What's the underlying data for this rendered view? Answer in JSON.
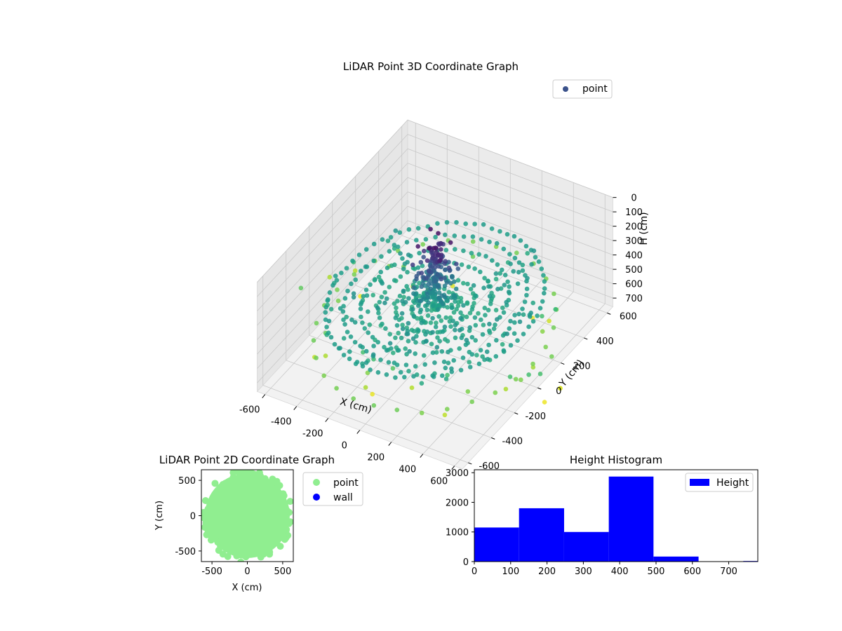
{
  "chart_data": [
    {
      "type": "scatter",
      "projection": "3d",
      "title": "LiDAR Point 3D Coordinate Graph",
      "xlabel": "X (cm)",
      "ylabel": "Y (cm)",
      "zlabel": "H (cm)",
      "xlim": [
        -650,
        650
      ],
      "ylim": [
        -650,
        650
      ],
      "zlim": [
        760,
        0
      ],
      "z_inverted": true,
      "xticks": [
        -600,
        -400,
        -200,
        0,
        200,
        400,
        600
      ],
      "yticks": [
        -600,
        -400,
        -200,
        0,
        200,
        400,
        600
      ],
      "zticks": [
        0,
        100,
        200,
        300,
        400,
        500,
        600,
        700
      ],
      "colormap": "viridis (by height)",
      "legend": {
        "position": "upper-right",
        "entries": [
          {
            "name": "point",
            "color": "#3b528b"
          }
        ]
      },
      "grid": true,
      "series": [
        {
          "name": "point",
          "description_of_points": [
            {
              "shape": "ring",
              "radius": 560,
              "h": 420,
              "count": 72
            },
            {
              "shape": "ring",
              "radius": 470,
              "h": 420,
              "count": 60
            },
            {
              "shape": "ring",
              "radius": 380,
              "h": 430,
              "count": 52
            },
            {
              "shape": "ring",
              "radius": 290,
              "h": 440,
              "count": 44
            },
            {
              "shape": "ring",
              "radius": 200,
              "h": 450,
              "count": 36
            },
            {
              "shape": "ring",
              "radius": 120,
              "h": 460,
              "count": 28
            },
            {
              "shape": "ring",
              "radius": 620,
              "h": 600,
              "count": 30
            },
            {
              "shape": "spiral-sheet",
              "r_range": [
                0,
                580
              ],
              "h_range": [
                380,
                470
              ],
              "count": 260
            },
            {
              "shape": "central-column",
              "r_max": 120,
              "h_range": [
                20,
                400
              ],
              "count": 160
            },
            {
              "shape": "outer-arc-sparse",
              "r_range": [
                640,
                900
              ],
              "h_range": [
                500,
                750
              ],
              "count": 40
            }
          ]
        }
      ]
    },
    {
      "type": "scatter",
      "title": "LiDAR Point 2D Coordinate Graph",
      "xlabel": "X (cm)",
      "ylabel": "Y (cm)",
      "xlim": [
        -650,
        650
      ],
      "ylim": [
        -650,
        650
      ],
      "xticks": [
        -500,
        0,
        500
      ],
      "yticks": [
        -500,
        0,
        500
      ],
      "legend": {
        "position": "outside-right",
        "entries": [
          {
            "name": "point",
            "color": "#90ee90"
          },
          {
            "name": "wall",
            "color": "#0000ff"
          }
        ]
      },
      "series": [
        {
          "name": "point",
          "color": "#90ee90",
          "shape": "filled disk",
          "radius": 600
        },
        {
          "name": "wall",
          "color": "#0000ff",
          "values": []
        }
      ]
    },
    {
      "type": "bar",
      "subtype": "histogram",
      "title": "Height Histogram",
      "xlabel": "",
      "ylabel": "",
      "xlim": [
        0,
        780
      ],
      "ylim": [
        0,
        3100
      ],
      "xticks": [
        0,
        100,
        200,
        300,
        400,
        500,
        600,
        700
      ],
      "yticks": [
        0,
        1000,
        2000,
        3000
      ],
      "bin_edges": [
        0,
        123,
        247,
        370,
        493,
        617,
        740,
        780
      ],
      "values": [
        1150,
        1800,
        1000,
        2870,
        170,
        0,
        20
      ],
      "color": "#0000ff",
      "legend": {
        "position": "upper-right",
        "entries": [
          {
            "name": "Height",
            "color": "#0000ff"
          }
        ]
      }
    }
  ]
}
